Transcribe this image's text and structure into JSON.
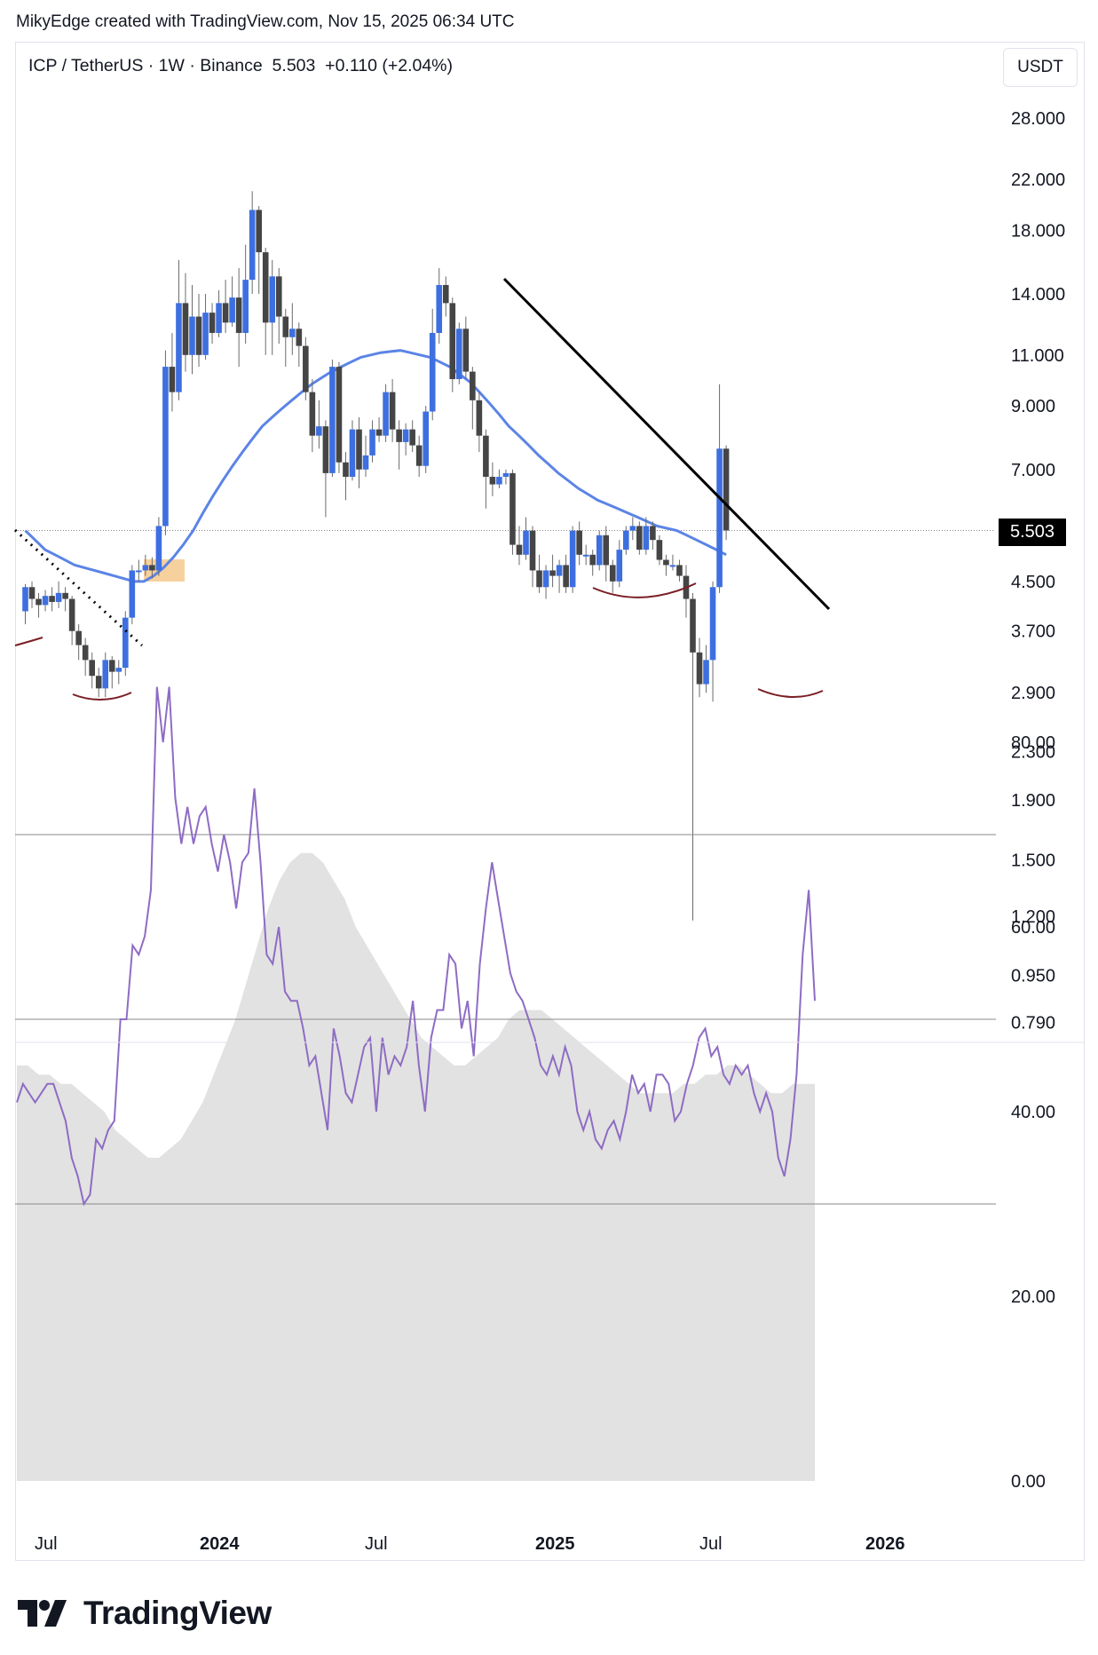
{
  "header": {
    "credit": "MikyEdge created with TradingView.com, Nov 15, 2025 06:34 UTC"
  },
  "symbol": {
    "text": "ICP / TetherUS · 1W · Binance  5.503  +0.110 (+2.04%)",
    "currency": "USDT"
  },
  "price_badge": "5.503",
  "logo": {
    "text": "TradingView"
  },
  "colors": {
    "bull": "#3d6fe0",
    "bear": "#454545",
    "ema": "#5b84e6",
    "rsi": "#8e6cc4",
    "rsi_band": "#e2e2e2",
    "highlight": "#f6c98c",
    "arc": "#7a1f25"
  },
  "chart_data": [
    {
      "type": "candlestick",
      "title": "ICP / TetherUS · 1W · Binance",
      "scale": "log",
      "y_ticks": [
        "28.000",
        "22.000",
        "18.000",
        "14.000",
        "11.000",
        "9.000",
        "7.000",
        "5.503",
        "4.500",
        "3.700",
        "2.900",
        "2.300",
        "1.900",
        "1.500",
        "1.200",
        "0.950",
        "0.790"
      ],
      "x_ticks": [
        {
          "label": "Jul",
          "bold": false
        },
        {
          "label": "2024",
          "bold": true
        },
        {
          "label": "Jul",
          "bold": false
        },
        {
          "label": "2025",
          "bold": true
        },
        {
          "label": "Jul",
          "bold": false
        },
        {
          "label": "2026",
          "bold": true
        }
      ],
      "last_price": 5.503,
      "candles": [
        [
          4.0,
          4.4,
          4.45,
          3.8
        ],
        [
          4.4,
          4.2,
          4.5,
          4.05
        ],
        [
          4.2,
          4.1,
          4.3,
          3.9
        ],
        [
          4.1,
          4.25,
          4.35,
          4.0
        ],
        [
          4.25,
          4.15,
          4.4,
          4.0
        ],
        [
          4.15,
          4.3,
          4.5,
          4.05
        ],
        [
          4.3,
          4.2,
          4.4,
          4.0
        ],
        [
          4.2,
          3.7,
          4.25,
          3.5
        ],
        [
          3.7,
          3.5,
          3.8,
          3.3
        ],
        [
          3.5,
          3.3,
          3.6,
          3.1
        ],
        [
          3.3,
          3.1,
          3.4,
          2.95
        ],
        [
          3.1,
          2.95,
          3.2,
          2.85
        ],
        [
          2.95,
          3.3,
          3.4,
          2.85
        ],
        [
          3.3,
          3.15,
          3.35,
          2.95
        ],
        [
          3.15,
          3.2,
          3.3,
          3.0
        ],
        [
          3.2,
          3.9,
          4.0,
          3.1
        ],
        [
          3.9,
          4.7,
          4.8,
          3.8
        ],
        [
          4.7,
          4.7,
          4.9,
          4.5
        ],
        [
          4.7,
          4.8,
          5.0,
          4.6
        ],
        [
          4.8,
          4.7,
          4.95,
          4.55
        ],
        [
          4.7,
          5.6,
          5.8,
          4.6
        ],
        [
          5.6,
          10.5,
          11.2,
          5.4
        ],
        [
          10.5,
          9.5,
          12.0,
          8.8
        ],
        [
          9.5,
          13.5,
          16.0,
          9.2
        ],
        [
          13.5,
          11.0,
          15.2,
          10.3
        ],
        [
          11.0,
          12.8,
          14.5,
          10.2
        ],
        [
          12.8,
          11.0,
          14.0,
          10.5
        ],
        [
          11.0,
          13.0,
          14.0,
          10.8
        ],
        [
          13.0,
          12.0,
          13.5,
          11.5
        ],
        [
          12.0,
          13.5,
          14.2,
          11.8
        ],
        [
          13.5,
          12.5,
          14.8,
          12.0
        ],
        [
          12.5,
          13.8,
          15.0,
          12.3
        ],
        [
          13.8,
          12.0,
          15.5,
          10.5
        ],
        [
          12.0,
          14.8,
          17.0,
          11.5
        ],
        [
          14.8,
          19.5,
          21.0,
          14.0
        ],
        [
          19.5,
          16.5,
          19.8,
          14.0
        ],
        [
          16.5,
          12.5,
          16.8,
          11.0
        ],
        [
          12.5,
          15.0,
          16.0,
          11.0
        ],
        [
          15.0,
          12.8,
          15.5,
          11.5
        ],
        [
          12.8,
          11.8,
          13.2,
          10.5
        ],
        [
          11.8,
          12.2,
          13.5,
          11.0
        ],
        [
          12.2,
          11.4,
          12.5,
          10.5
        ],
        [
          11.4,
          9.5,
          11.8,
          9.2
        ],
        [
          9.5,
          8.0,
          10.0,
          7.5
        ],
        [
          8.0,
          8.3,
          9.2,
          7.6
        ],
        [
          8.3,
          6.9,
          8.5,
          5.8
        ],
        [
          6.9,
          10.5,
          10.8,
          6.8
        ],
        [
          10.5,
          7.2,
          10.7,
          6.9
        ],
        [
          7.2,
          6.8,
          7.5,
          6.2
        ],
        [
          6.8,
          8.2,
          8.5,
          6.7
        ],
        [
          8.2,
          7.0,
          8.6,
          6.5
        ],
        [
          7.0,
          7.4,
          8.0,
          6.8
        ],
        [
          7.4,
          8.2,
          8.5,
          7.2
        ],
        [
          8.2,
          8.0,
          8.6,
          7.8
        ],
        [
          8.0,
          9.5,
          9.8,
          7.8
        ],
        [
          9.5,
          8.2,
          10.0,
          7.8
        ],
        [
          8.2,
          7.8,
          8.5,
          7.0
        ],
        [
          7.8,
          8.2,
          8.4,
          7.4
        ],
        [
          8.2,
          7.7,
          8.5,
          7.5
        ],
        [
          7.7,
          7.1,
          8.0,
          6.8
        ],
        [
          7.1,
          8.8,
          9.0,
          6.9
        ],
        [
          8.8,
          12.0,
          13.2,
          8.5
        ],
        [
          12.0,
          14.5,
          15.5,
          11.5
        ],
        [
          14.5,
          13.5,
          15.0,
          12.8
        ],
        [
          13.5,
          10.0,
          13.8,
          9.5
        ],
        [
          10.0,
          12.2,
          12.5,
          9.8
        ],
        [
          12.2,
          10.3,
          12.8,
          10.0
        ],
        [
          10.3,
          9.2,
          10.5,
          8.2
        ],
        [
          9.2,
          8.0,
          9.5,
          7.5
        ],
        [
          8.0,
          6.8,
          8.2,
          6.0
        ],
        [
          6.8,
          6.6,
          7.2,
          6.3
        ],
        [
          6.6,
          6.8,
          7.0,
          6.5
        ],
        [
          6.8,
          6.9,
          7.0,
          6.6
        ],
        [
          6.9,
          5.2,
          7.0,
          5.0
        ],
        [
          5.2,
          5.0,
          5.6,
          4.8
        ],
        [
          5.0,
          5.5,
          5.8,
          4.9
        ],
        [
          5.5,
          4.7,
          5.6,
          4.4
        ],
        [
          4.7,
          4.4,
          5.0,
          4.3
        ],
        [
          4.4,
          4.7,
          4.8,
          4.2
        ],
        [
          4.7,
          4.6,
          5.0,
          4.4
        ],
        [
          4.6,
          4.8,
          4.9,
          4.3
        ],
        [
          4.8,
          4.4,
          5.0,
          4.3
        ],
        [
          4.4,
          5.5,
          5.6,
          4.3
        ],
        [
          5.5,
          5.0,
          5.7,
          4.8
        ],
        [
          5.0,
          5.0,
          5.2,
          4.8
        ],
        [
          5.0,
          4.8,
          5.1,
          4.6
        ],
        [
          4.8,
          5.4,
          5.5,
          4.7
        ],
        [
          5.4,
          4.8,
          5.6,
          4.5
        ],
        [
          4.8,
          4.5,
          4.9,
          4.3
        ],
        [
          4.5,
          5.1,
          5.3,
          4.4
        ],
        [
          5.1,
          5.5,
          5.6,
          5.0
        ],
        [
          5.5,
          5.6,
          5.8,
          5.3
        ],
        [
          5.6,
          5.1,
          5.7,
          5.0
        ],
        [
          5.1,
          5.6,
          5.8,
          5.0
        ],
        [
          5.6,
          5.3,
          5.7,
          5.1
        ],
        [
          5.3,
          4.9,
          5.4,
          4.8
        ],
        [
          4.9,
          4.8,
          5.0,
          4.6
        ],
        [
          4.8,
          4.8,
          5.0,
          4.7
        ],
        [
          4.8,
          4.6,
          4.9,
          4.5
        ],
        [
          4.6,
          4.2,
          4.8,
          3.9
        ],
        [
          4.2,
          3.4,
          4.3,
          1.18
        ],
        [
          3.4,
          3.0,
          3.6,
          2.85
        ],
        [
          3.0,
          3.3,
          3.5,
          2.9
        ],
        [
          3.3,
          4.4,
          4.5,
          2.8
        ],
        [
          4.4,
          7.6,
          9.8,
          4.3
        ],
        [
          7.6,
          5.503,
          7.7,
          5.3
        ]
      ],
      "ema": [
        5.5,
        5.3,
        5.1,
        5.0,
        4.9,
        4.8,
        4.75,
        4.7,
        4.65,
        4.6,
        4.55,
        4.5,
        4.5,
        4.6,
        4.75,
        4.95,
        5.2,
        5.5,
        5.9,
        6.3,
        6.7,
        7.1,
        7.5,
        7.9,
        8.3,
        8.6,
        8.9,
        9.2,
        9.5,
        9.8,
        10.05,
        10.3,
        10.5,
        10.7,
        10.9,
        11.0,
        11.1,
        11.15,
        11.2,
        11.1,
        11.0,
        10.9,
        10.7,
        10.5,
        10.2,
        9.9,
        9.5,
        9.1,
        8.7,
        8.3,
        8.0,
        7.7,
        7.4,
        7.15,
        6.9,
        6.7,
        6.5,
        6.35,
        6.2,
        6.1,
        6.0,
        5.9,
        5.8,
        5.7,
        5.6,
        5.55,
        5.5,
        5.4,
        5.3,
        5.2,
        5.1,
        5.0
      ],
      "annotations": [
        "trendline",
        "dotted-trendline",
        "arc-bottom-1",
        "arc-bottom-2",
        "arc-bottom-3",
        "highlight-box"
      ]
    },
    {
      "type": "line",
      "title": "",
      "y_ticks": [
        "80.00",
        "60.00",
        "40.00",
        "20.00",
        "0.00"
      ],
      "levels": [
        70,
        50,
        30
      ],
      "ylim": [
        0,
        100
      ],
      "rsi": [
        41,
        43,
        42,
        41,
        42,
        43,
        43,
        41,
        39,
        35,
        33,
        30,
        31,
        37,
        36,
        38,
        39,
        50,
        50,
        58,
        57,
        59,
        64,
        86,
        80,
        86,
        74,
        69,
        73,
        69,
        72,
        73,
        69,
        66,
        70,
        67,
        62,
        67,
        68,
        75,
        67,
        57,
        56,
        60,
        53,
        52,
        52,
        49,
        45,
        46,
        42,
        38,
        49,
        46,
        42,
        41,
        44,
        47,
        48,
        40,
        48,
        44,
        46,
        45,
        47,
        52,
        45,
        40,
        48,
        51,
        51,
        57,
        56,
        49,
        52,
        46,
        56,
        62,
        67,
        63,
        59,
        55,
        53,
        52,
        50,
        48,
        45,
        44,
        46,
        44,
        47,
        45,
        40,
        38,
        40,
        37,
        36,
        38,
        39,
        37,
        40,
        44,
        42,
        43,
        40,
        44,
        44,
        43,
        39,
        40,
        43,
        45,
        48,
        49,
        46,
        47,
        44,
        43,
        45,
        44,
        45,
        42,
        40,
        42,
        40,
        35,
        33,
        37,
        44,
        57,
        64,
        52
      ],
      "rsi_ma": [
        45,
        45,
        44,
        44,
        43,
        43,
        42,
        41,
        40,
        38,
        37,
        36,
        35,
        35,
        36,
        37,
        39,
        41,
        44,
        47,
        50,
        54,
        58,
        62,
        65,
        67,
        68,
        68,
        67,
        65,
        63,
        60,
        58,
        56,
        54,
        52,
        50,
        48,
        47,
        46,
        45,
        45,
        46,
        47,
        48,
        50,
        51,
        51,
        51,
        50,
        49,
        48,
        47,
        46,
        45,
        44,
        43,
        42,
        42,
        42,
        42,
        43,
        43,
        44,
        44,
        45,
        45,
        44,
        43,
        42,
        42,
        43,
        43,
        43
      ]
    }
  ]
}
